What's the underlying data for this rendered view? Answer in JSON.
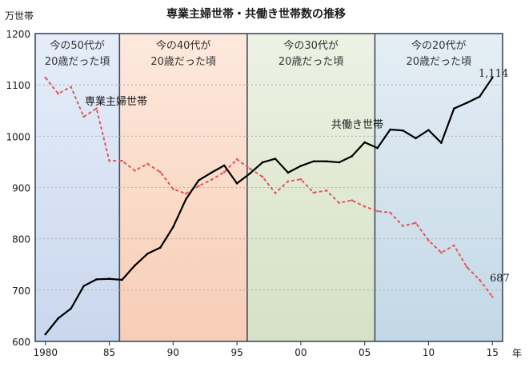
{
  "chart_data": {
    "type": "line",
    "title": "専業主婦世帯・共働き世帯数の推移",
    "ylabel": "万世帯",
    "xlabel": "年",
    "ylim": [
      600,
      1200
    ],
    "xlim": [
      1979.2,
      2015.8
    ],
    "yticks": [
      600,
      700,
      800,
      900,
      1000,
      1100,
      1200
    ],
    "xticks": [
      {
        "value": 1980,
        "label": "1980"
      },
      {
        "value": 1985,
        "label": "85"
      },
      {
        "value": 1990,
        "label": "90"
      },
      {
        "value": 1995,
        "label": "95"
      },
      {
        "value": 2000,
        "label": "00"
      },
      {
        "value": 2005,
        "label": "05"
      },
      {
        "value": 2010,
        "label": "10"
      },
      {
        "value": 2015,
        "label": "15"
      }
    ],
    "x": [
      1980,
      1981,
      1982,
      1983,
      1984,
      1985,
      1986,
      1987,
      1988,
      1989,
      1990,
      1991,
      1992,
      1993,
      1994,
      1995,
      1996,
      1997,
      1998,
      1999,
      2000,
      2001,
      2002,
      2003,
      2004,
      2005,
      2006,
      2007,
      2008,
      2009,
      2010,
      2011,
      2012,
      2013,
      2014,
      2015
    ],
    "series": [
      {
        "name": "専業主婦世帯",
        "color": "#e0595c",
        "dash": "4,3",
        "values": [
          1114,
          1083,
          1096,
          1038,
          1054,
          952,
          952,
          933,
          946,
          930,
          897,
          888,
          903,
          915,
          930,
          955,
          937,
          921,
          889,
          912,
          916,
          890,
          894,
          870,
          875,
          863,
          854,
          851,
          825,
          831,
          797,
          773,
          787,
          745,
          720,
          687
        ]
      },
      {
        "name": "共働き世帯",
        "color": "#000000",
        "dash": "",
        "values": [
          614,
          645,
          664,
          708,
          721,
          722,
          720,
          748,
          771,
          783,
          823,
          877,
          914,
          929,
          943,
          908,
          927,
          949,
          956,
          929,
          942,
          951,
          951,
          949,
          961,
          988,
          977,
          1013,
          1011,
          996,
          1012,
          987,
          1054,
          1065,
          1077,
          1114
        ]
      }
    ],
    "annotations": {
      "housewife_series_label": "専業主婦世帯",
      "dualincome_series_label": "共働き世帯",
      "end_value_dualincome": "1,114",
      "end_value_housewife": "687"
    },
    "eras": [
      {
        "from": 1979.2,
        "to": 1985.8,
        "color": "#dde6f6",
        "line1": "今の50代が",
        "line2": "20歳だった頃"
      },
      {
        "from": 1985.8,
        "to": 1995.8,
        "color": "#fbe0d2",
        "line1": "今の40代が",
        "line2": "20歳だった頃"
      },
      {
        "from": 1995.8,
        "to": 2005.8,
        "color": "#e5ecd9",
        "line1": "今の30代が",
        "line2": "20歳だった頃"
      },
      {
        "from": 2005.8,
        "to": 2015.8,
        "color": "#dbe8f0",
        "line1": "今の20代が",
        "line2": "20歳だった頃"
      }
    ],
    "grid": true,
    "legend": "none"
  }
}
